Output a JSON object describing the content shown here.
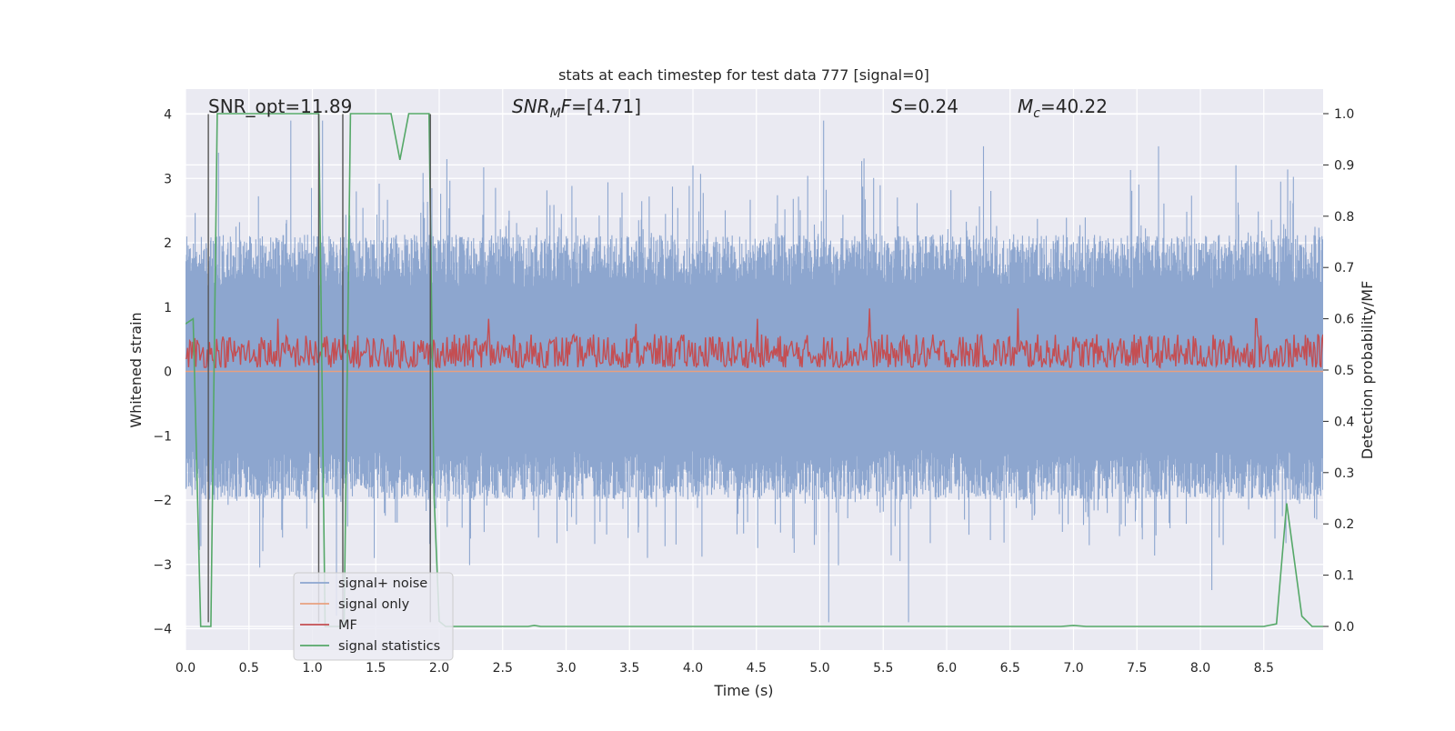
{
  "chart_data": {
    "type": "line",
    "title": "stats at each timestep for test data 777 [signal=0]",
    "xlabel": "Time (s)",
    "ylabel": "Whitened strain",
    "y2label": "Detection probability/MF",
    "xlim": [
      0.0,
      9.0
    ],
    "ylim": [
      -4.3,
      4.4
    ],
    "y2lim": [
      -0.05,
      1.04
    ],
    "x_ticks": [
      "0.0",
      "0.5",
      "1.0",
      "1.5",
      "2.0",
      "2.5",
      "3.0",
      "3.5",
      "4.0",
      "4.5",
      "5.0",
      "5.5",
      "6.0",
      "6.5",
      "7.0",
      "7.5",
      "8.0",
      "8.5"
    ],
    "y_ticks": [
      "−4",
      "−3",
      "−2",
      "−1",
      "0",
      "1",
      "2",
      "3",
      "4"
    ],
    "y2_ticks": [
      "0.0",
      "0.1",
      "0.2",
      "0.3",
      "0.4",
      "0.5",
      "0.6",
      "0.7",
      "0.8",
      "0.9",
      "1.0"
    ],
    "grid": true,
    "legend_position": "lower-left",
    "annotations": {
      "snr_opt": "SNR_opt=11.89",
      "snr_mf_main": "SNR",
      "snr_mf_sub": "M",
      "snr_mf_rest": "F=[4.71]",
      "s_main": "S",
      "s_rest": "=0.24",
      "mc_main": "M",
      "mc_sub": "c",
      "mc_rest": "=40.22"
    },
    "series": [
      {
        "name": "signal+ noise",
        "color": "#8da6cf",
        "axis": "left",
        "description_of_envelope": {
          "typical_upper_y": 1.7,
          "typical_lower_y": -1.6,
          "peak_spikes": [
            {
              "x": 0.26,
              "y": 3.4
            },
            {
              "x": 0.83,
              "y": 3.9
            },
            {
              "x": 1.08,
              "y": 3.9
            },
            {
              "x": 2.06,
              "y": 3.3
            },
            {
              "x": 4.0,
              "y": 3.2
            },
            {
              "x": 5.03,
              "y": 3.9
            },
            {
              "x": 5.07,
              "y": -3.9
            },
            {
              "x": 5.7,
              "y": -3.9
            },
            {
              "x": 6.29,
              "y": 3.5
            },
            {
              "x": 7.67,
              "y": 3.5
            },
            {
              "x": 8.09,
              "y": -3.4
            },
            {
              "x": 1.19,
              "y": -3.8
            }
          ]
        }
      },
      {
        "name": "signal only",
        "color": "#e8a07f",
        "axis": "left",
        "x": [
          0.0,
          9.0
        ],
        "y": [
          0.0,
          0.0
        ]
      },
      {
        "name": "MF",
        "color": "#c44e52",
        "axis": "right",
        "typical_min": 0.505,
        "typical_max": 0.57,
        "peaks": [
          {
            "x": 0.73,
            "y": 0.6
          },
          {
            "x": 2.39,
            "y": 0.6
          },
          {
            "x": 4.51,
            "y": 0.6
          },
          {
            "x": 5.39,
            "y": 0.62
          },
          {
            "x": 6.56,
            "y": 0.62
          },
          {
            "x": 3.55,
            "y": 0.59
          },
          {
            "x": 8.44,
            "y": 0.6
          }
        ]
      },
      {
        "name": "signal statistics",
        "color": "#55a868",
        "axis": "right",
        "x": [
          0.0,
          0.06,
          0.12,
          0.17,
          0.2,
          0.25,
          0.3,
          0.5,
          1.0,
          1.05,
          1.1,
          1.2,
          1.25,
          1.3,
          1.35,
          1.5,
          1.62,
          1.69,
          1.76,
          1.82,
          1.92,
          1.96,
          2.0,
          2.05,
          2.1,
          2.5,
          2.7,
          2.75,
          2.8,
          6.9,
          7.0,
          7.1,
          8.5,
          8.6,
          8.68,
          8.8,
          8.88,
          9.0
        ],
        "y": [
          0.59,
          0.6,
          0.0,
          0.0,
          0.0,
          1.0,
          1.0,
          1.0,
          1.0,
          1.0,
          0.0,
          0.0,
          0.0,
          1.0,
          1.0,
          1.0,
          1.0,
          0.91,
          1.0,
          1.0,
          1.0,
          0.25,
          0.01,
          0.0,
          0.0,
          0.0,
          0.0,
          0.002,
          0.0,
          0.0,
          0.002,
          0.0,
          0.0,
          0.005,
          0.24,
          0.02,
          0.0,
          0.0
        ]
      }
    ],
    "vertical_markers_x": [
      0.18,
      1.05,
      1.24,
      1.93
    ]
  },
  "legend": [
    {
      "label": "signal+ noise",
      "color": "#8da6cf"
    },
    {
      "label": "signal only",
      "color": "#e8a07f"
    },
    {
      "label": "MF",
      "color": "#c44e52"
    },
    {
      "label": "signal statistics",
      "color": "#55a868"
    }
  ]
}
